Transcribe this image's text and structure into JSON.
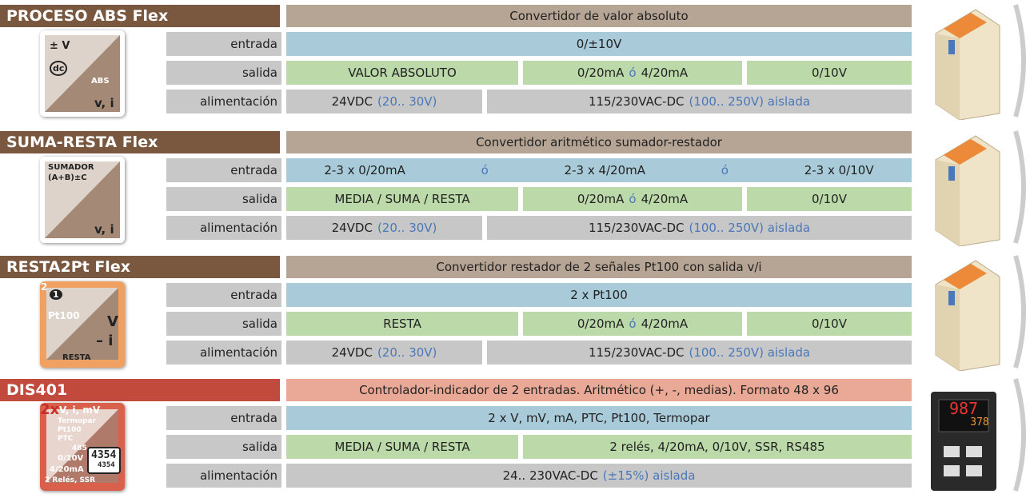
{
  "products": [
    {
      "name": "PROCESO ABS Flex",
      "description": "Convertidor de valor absoluto",
      "icon": [
        "± V",
        "dc",
        "ABS",
        "v, i"
      ],
      "rows": [
        {
          "label": "entrada",
          "cells": [
            [
              "0/±10V"
            ]
          ]
        },
        {
          "label": "salida",
          "cells": [
            [
              "VALOR ABSOLUTO"
            ],
            [
              "0/20mA",
              "ó",
              "4/20mA"
            ],
            [
              "0/10V"
            ]
          ]
        },
        {
          "label": "alimentación",
          "cells": [
            [
              "24VDC",
              "(20.. 30V)"
            ],
            [
              "115/230VAC-DC",
              "(100.. 250V) aislada"
            ]
          ]
        }
      ]
    },
    {
      "name": "SUMA-RESTA Flex",
      "description": "Convertidor aritmético sumador-restador",
      "icon": [
        "SUMADOR",
        "(A+B)±C",
        "v, i"
      ],
      "rows": [
        {
          "label": "entrada",
          "cells": [
            [
              "2-3 x 0/20mA",
              "ó",
              "2-3 x 4/20mA",
              "ó",
              "2-3 x 0/10V"
            ]
          ]
        },
        {
          "label": "salida",
          "cells": [
            [
              "MEDIA / SUMA / RESTA"
            ],
            [
              "0/20mA",
              "ó",
              "4/20mA"
            ],
            [
              "0/10V"
            ]
          ]
        },
        {
          "label": "alimentación",
          "cells": [
            [
              "24VDC",
              "(20.. 30V)"
            ],
            [
              "115/230VAC-DC",
              "(100.. 250V) aislada"
            ]
          ]
        }
      ]
    },
    {
      "name": "RESTA2Pt Flex",
      "description": "Convertidor restador de 2 señales Pt100 con salida v/i",
      "icon": [
        "2",
        "1",
        "Pt100",
        "V",
        "– i",
        "RESTA"
      ],
      "rows": [
        {
          "label": "entrada",
          "cells": [
            [
              "2 x Pt100"
            ]
          ]
        },
        {
          "label": "salida",
          "cells": [
            [
              "RESTA"
            ],
            [
              "0/20mA",
              "ó",
              "4/20mA"
            ],
            [
              "0/10V"
            ]
          ]
        },
        {
          "label": "alimentación",
          "cells": [
            [
              "24VDC",
              "(20.. 30V)"
            ],
            [
              "115/230VAC-DC",
              "(100.. 250V) aislada"
            ]
          ]
        }
      ]
    },
    {
      "name": "DIS401",
      "description": "Controlador-indicador de 2 entradas. Aritmético (+, -, medias). Formato 48 x 96",
      "icon": [
        "2x",
        "V, i, mV",
        "Termopar",
        "Pt100",
        "PTC",
        "485",
        "0/10V",
        "4/20mA",
        "2 Relés, SSR",
        "4354",
        "4354"
      ],
      "device_display": [
        "987",
        "378"
      ],
      "rows": [
        {
          "label": "entrada",
          "cells": [
            [
              "2 x V, mV, mA, PTC, Pt100, Termopar"
            ]
          ]
        },
        {
          "label": "salida",
          "cells": [
            [
              "MEDIA / SUMA / RESTA"
            ],
            [
              "2 relés, 4/20mA, 0/10V, SSR, RS485"
            ]
          ]
        },
        {
          "label": "alimentación",
          "cells": [
            [
              "24.. 230VAC-DC",
              "(±15%) aislada"
            ]
          ]
        }
      ]
    }
  ]
}
